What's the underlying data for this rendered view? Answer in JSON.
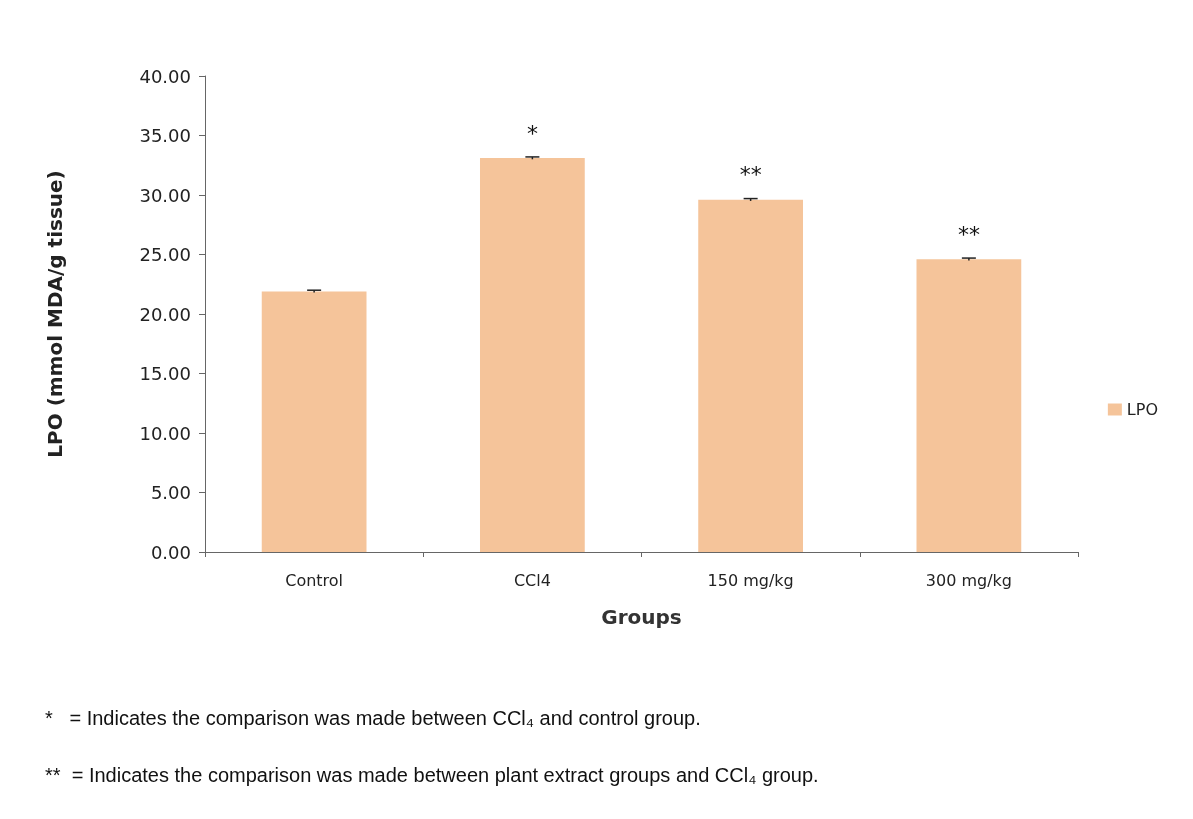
{
  "chart_data": {
    "type": "bar",
    "xlabel": "Groups",
    "ylabel": "LPO (mmol MDA/g tissue)",
    "categories": [
      "Control",
      "CCl4",
      "150 mg/kg",
      "300 mg/kg"
    ],
    "series": [
      {
        "name": "LPO",
        "color": "#f5c49a",
        "values": [
          21.9,
          33.1,
          29.6,
          24.6
        ],
        "errors": [
          0.1,
          0.1,
          0.1,
          0.1
        ],
        "value_labels": [
          null,
          "*",
          "**",
          "**"
        ]
      }
    ],
    "ylim": [
      0,
      40
    ],
    "yticks": [
      {
        "value": 0,
        "label": "0.00"
      },
      {
        "value": 5,
        "label": "5.00"
      },
      {
        "value": 10,
        "label": "10.00"
      },
      {
        "value": 15,
        "label": "15.00"
      },
      {
        "value": 20,
        "label": "20.00"
      },
      {
        "value": 25,
        "label": "25.00"
      },
      {
        "value": 30,
        "label": "30.00"
      },
      {
        "value": 35,
        "label": "35.00"
      },
      {
        "value": 40,
        "label": "40.00"
      }
    ],
    "grid": false,
    "legend": "right",
    "annotations": [
      "*   = Indicates the comparison was made between CCl₄ and control group.",
      "**  = Indicates the comparison was made between plant extract groups and CCl₄ group."
    ]
  }
}
